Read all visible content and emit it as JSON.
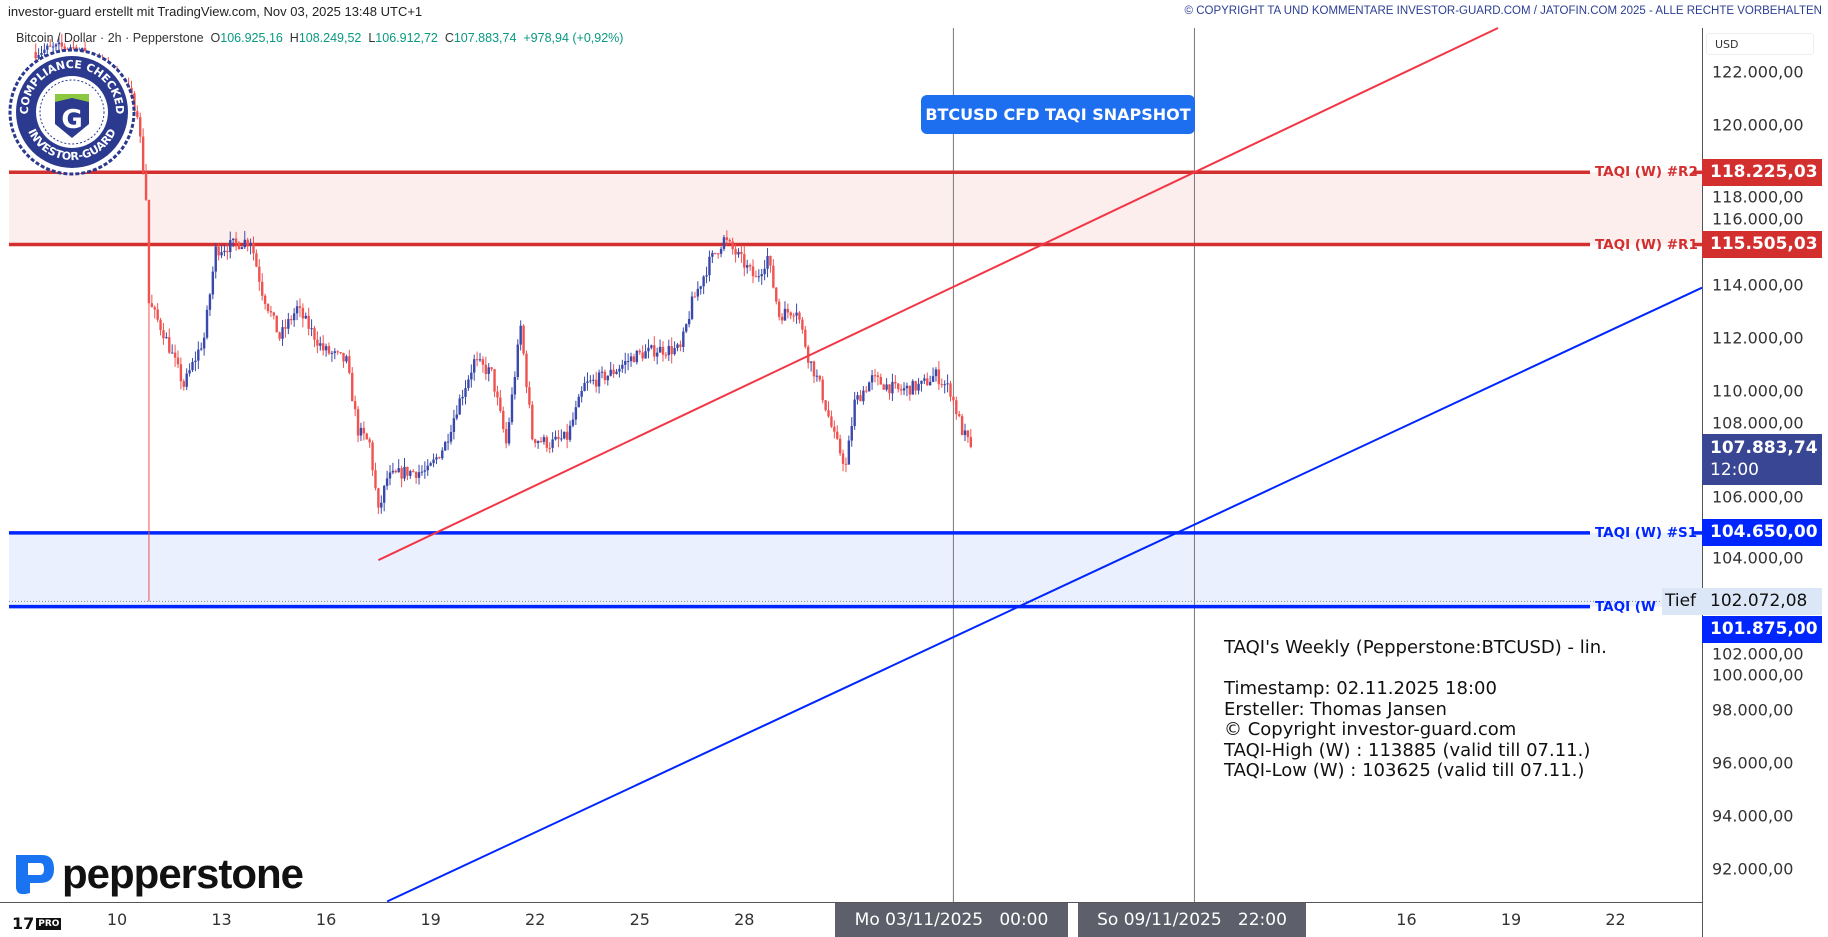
{
  "header": {
    "left": "investor-guard erstellt mit TradingView.com, Nov 03, 2025 13:48 UTC+1",
    "right": "© COPYRIGHT TA UND KOMMENTARE INVESTOR-GUARD.COM / JATOFIN.COM 2025 - ALLE RECHTE VORBEHALTEN"
  },
  "legend": {
    "symbol": "Bitcoin / Dollar · 2h · Pepperstone",
    "o_label": "O",
    "o": "106.925,16",
    "h_label": "H",
    "h": "108.249,52",
    "l_label": "L",
    "l": "106.912,72",
    "c_label": "C",
    "c": "107.883,74",
    "change": "+978,94 (+0,92%)"
  },
  "colors": {
    "up": "#3949ab",
    "down": "#ef5350",
    "resistance": "#d32f2f",
    "support": "#0026ff",
    "resistance_zone": "#fdeeee",
    "support_zone": "#eaf0fd",
    "last_price": "#394694",
    "snapshot": "#1e6ff0"
  },
  "watermark": {
    "seal_top": "COMPLIANCE CHECKED",
    "seal_bottom": "INVESTOR-GUARD",
    "brand": "pepperstone",
    "seal_letter": "G"
  },
  "snapshot_label": "BTCUSD CFD TAQI SNAPSHOT",
  "chart_data": {
    "type": "candlestick",
    "interval": "2h",
    "currency": "USD",
    "ylim": [
      91000,
      124000
    ],
    "y_ticks": [
      122000,
      120000,
      118000,
      116000,
      114000,
      112000,
      110000,
      108000,
      106000,
      104000,
      102000,
      100000,
      98000,
      96000,
      94000,
      92000
    ],
    "y_tick_labels": [
      "122.000,00",
      "120.000,00",
      "118.000,00",
      "116.000,00",
      "114.000,00",
      "112.000,00",
      "110.000,00",
      "108.000,00",
      "106.000,00",
      "104.000,00",
      "102.000,00",
      "100.000,00",
      "98.000,00",
      "96.000,00",
      "94.000,00",
      "92.000,00"
    ],
    "x_ticks": [
      {
        "label": "10",
        "date": "2025-10-10 00:00"
      },
      {
        "label": "13",
        "date": "2025-10-13 00:00"
      },
      {
        "label": "16",
        "date": "2025-10-16 00:00"
      },
      {
        "label": "19",
        "date": "2025-10-19 00:00"
      },
      {
        "label": "22",
        "date": "2025-10-22 00:00"
      },
      {
        "label": "25",
        "date": "2025-10-25 00:00"
      },
      {
        "label": "28",
        "date": "2025-10-28 00:00"
      },
      {
        "label": "16",
        "date": "2025-11-16 00:00"
      },
      {
        "label": "19",
        "date": "2025-11-19 00:00"
      },
      {
        "label": "22",
        "date": "2025-11-22 00:00"
      }
    ],
    "x_highlight": [
      {
        "label": "Mo 03/11/2025   00:00",
        "date": "2025-11-03 00:00"
      },
      {
        "label": "So 09/11/2025   22:00",
        "date": "2025-11-09 22:00"
      }
    ],
    "close_path": [
      [
        "2025-10-07 14:00",
        122750
      ],
      [
        "2025-10-08 16:00",
        122970
      ],
      [
        "2025-10-09 12:00",
        122300
      ],
      [
        "2025-10-10 04:00",
        121650
      ],
      [
        "2025-10-10 14:00",
        120550
      ],
      [
        "2025-10-10 20:00",
        117250
      ],
      [
        "2025-10-10 22:00",
        113300
      ],
      [
        "2025-10-11 08:00",
        112200
      ],
      [
        "2025-10-11 22:00",
        110200
      ],
      [
        "2025-10-12 12:00",
        112000
      ],
      [
        "2025-10-12 20:00",
        115300
      ],
      [
        "2025-10-13 08:00",
        115500
      ],
      [
        "2025-10-13 20:00",
        115700
      ],
      [
        "2025-10-14 04:00",
        113750
      ],
      [
        "2025-10-14 16:00",
        112000
      ],
      [
        "2025-10-15 04:00",
        113100
      ],
      [
        "2025-10-15 22:00",
        111550
      ],
      [
        "2025-10-16 14:00",
        111100
      ],
      [
        "2025-10-16 22:00",
        108500
      ],
      [
        "2025-10-17 06:00",
        108000
      ],
      [
        "2025-10-17 12:00",
        105400
      ],
      [
        "2025-10-17 18:00",
        106700
      ],
      [
        "2025-10-18 06:00",
        106950
      ],
      [
        "2025-10-18 22:00",
        106950
      ],
      [
        "2025-10-19 10:00",
        108000
      ],
      [
        "2025-10-19 18:00",
        109350
      ],
      [
        "2025-10-20 06:00",
        111100
      ],
      [
        "2025-10-20 18:00",
        110650
      ],
      [
        "2025-10-21 04:00",
        108000
      ],
      [
        "2025-10-21 14:00",
        112400
      ],
      [
        "2025-10-21 22:00",
        108250
      ],
      [
        "2025-10-22 10:00",
        108000
      ],
      [
        "2025-10-22 22:00",
        108250
      ],
      [
        "2025-10-23 10:00",
        110200
      ],
      [
        "2025-10-24 04:00",
        110650
      ],
      [
        "2025-10-24 20:00",
        111300
      ],
      [
        "2025-10-25 12:00",
        111550
      ],
      [
        "2025-10-26 04:00",
        111550
      ],
      [
        "2025-10-26 12:00",
        113300
      ],
      [
        "2025-10-27 00:00",
        114850
      ],
      [
        "2025-10-27 10:00",
        115700
      ],
      [
        "2025-10-27 20:00",
        115050
      ],
      [
        "2025-10-28 08:00",
        114200
      ],
      [
        "2025-10-28 16:00",
        115050
      ],
      [
        "2025-10-29 00:00",
        112850
      ],
      [
        "2025-10-29 12:00",
        113100
      ],
      [
        "2025-10-29 20:00",
        111300
      ],
      [
        "2025-10-30 04:00",
        110200
      ],
      [
        "2025-10-30 14:00",
        108250
      ],
      [
        "2025-10-30 22:00",
        107150
      ],
      [
        "2025-10-31 04:00",
        109550
      ],
      [
        "2025-10-31 16:00",
        110450
      ],
      [
        "2025-11-01 10:00",
        110000
      ],
      [
        "2025-11-02 02:00",
        110200
      ],
      [
        "2025-11-02 12:00",
        110600
      ],
      [
        "2025-11-02 22:00",
        110000
      ],
      [
        "2025-11-03 06:00",
        108500
      ],
      [
        "2025-11-03 12:00",
        107883.74
      ]
    ],
    "low_wick": {
      "date": "2025-10-10 22:00",
      "value": 102072.08,
      "label": "Tief",
      "value_label": "102.072,08"
    },
    "last_price": {
      "value": 107883.74,
      "label": "107.883,74",
      "countdown": "12:00"
    },
    "levels": [
      {
        "name": "TAQI (W) #R2",
        "short": "TAQI (W) #R2",
        "value": 118225.03,
        "label": "118.225,03",
        "kind": "resistance"
      },
      {
        "name": "TAQI (W) #R1",
        "short": "TAQI (W) #R1",
        "value": 115505.03,
        "label": "115.505,03",
        "kind": "resistance"
      },
      {
        "name": "TAQI (W) #S1",
        "short": "TAQI (W) #S1",
        "value": 104650.0,
        "label": "104.650,00",
        "kind": "support"
      },
      {
        "name": "TAQI (W) #S2",
        "short": "TAQI (W",
        "value": 101875.0,
        "label": "101.875,00",
        "kind": "support"
      }
    ],
    "trendlines": [
      {
        "kind": "resistance",
        "from": [
          "2025-10-17 12:00",
          103625
        ],
        "to": [
          "2025-11-09 22:00",
          118225
        ]
      },
      {
        "kind": "support",
        "from": [
          "2025-10-17 18:00",
          90775
        ],
        "to": [
          "2025-11-25 20:00",
          114710
        ]
      }
    ]
  },
  "note": {
    "lines": [
      "TAQI's Weekly (Pepperstone:BTCUSD) - lin.",
      " ",
      "Timestamp: 02.11.2025 18:00",
      "Ersteller: Thomas Jansen",
      "© Copyright investor-guard.com",
      "TAQI-High (W) : 113885 (valid till 07.11.)",
      "TAQI-Low (W) : 103625 (valid till 07.11.)"
    ]
  },
  "axis": {
    "currency_label": "USD"
  },
  "tv_logo": {
    "text": "17",
    "badge": "PRO"
  }
}
